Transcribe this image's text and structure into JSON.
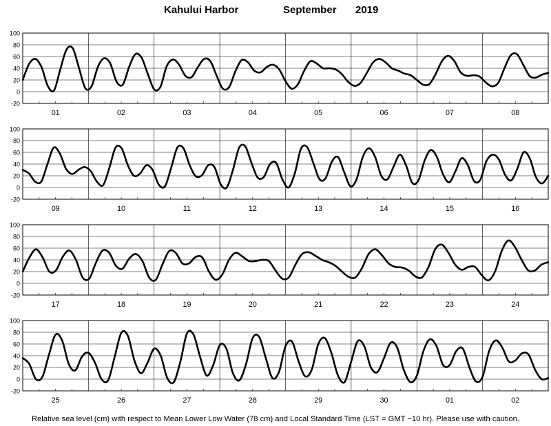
{
  "header": {
    "location": "Kahului Harbor",
    "month": "September",
    "year": "2019"
  },
  "caption": "Relative sea level (cm) with respect to Mean Lower Low Water (78 cm) and Local Standard Time (LST = GMT −10 hr). Please use with caution.",
  "chart_data": [
    {
      "type": "line",
      "x_labels": [
        "01",
        "02",
        "03",
        "04",
        "05",
        "06",
        "07",
        "08"
      ],
      "ylim": [
        -20,
        100
      ],
      "yticks": [
        -20,
        0,
        20,
        40,
        60,
        80,
        100
      ],
      "grid": true,
      "series": [
        {
          "values": [
            20,
            47,
            56,
            42,
            10,
            2,
            38,
            72,
            74,
            40,
            6,
            9,
            42,
            57,
            48,
            17,
            12,
            42,
            64,
            58,
            30,
            4,
            8,
            43,
            55,
            46,
            27,
            25,
            42,
            56,
            52,
            27,
            5,
            8,
            35,
            54,
            50,
            36,
            33,
            42,
            46,
            38,
            18,
            5,
            13,
            36,
            52,
            48,
            40,
            40,
            38,
            30,
            17,
            10,
            15,
            32,
            50,
            56,
            50,
            40,
            36,
            31,
            28,
            20,
            12,
            13,
            30,
            52,
            61,
            52,
            33,
            27,
            28,
            26,
            16,
            9,
            15,
            40,
            62,
            64,
            46,
            27,
            24,
            29,
            32
          ]
        }
      ]
    },
    {
      "type": "line",
      "x_labels": [
        "09",
        "10",
        "11",
        "12",
        "13",
        "14",
        "15",
        "16"
      ],
      "ylim": [
        -20,
        100
      ],
      "yticks": [
        -20,
        0,
        20,
        40,
        60,
        80,
        100
      ],
      "grid": true,
      "series": [
        {
          "values": [
            30,
            24,
            10,
            10,
            40,
            68,
            58,
            32,
            23,
            30,
            35,
            28,
            10,
            4,
            33,
            68,
            67,
            38,
            20,
            24,
            38,
            30,
            5,
            2,
            33,
            68,
            67,
            38,
            19,
            21,
            38,
            35,
            6,
            0,
            30,
            68,
            70,
            42,
            17,
            18,
            40,
            42,
            14,
            0,
            24,
            66,
            69,
            42,
            14,
            16,
            44,
            52,
            26,
            2,
            14,
            52,
            67,
            52,
            20,
            14,
            36,
            56,
            38,
            8,
            12,
            46,
            64,
            52,
            22,
            9,
            28,
            50,
            38,
            11,
            13,
            45,
            56,
            48,
            22,
            12,
            32,
            60,
            50,
            18,
            7,
            20
          ]
        }
      ]
    },
    {
      "type": "line",
      "x_labels": [
        "17",
        "18",
        "19",
        "20",
        "21",
        "22",
        "23",
        "24"
      ],
      "ylim": [
        -20,
        100
      ],
      "yticks": [
        -20,
        0,
        20,
        40,
        60,
        80,
        100
      ],
      "grid": true,
      "series": [
        {
          "values": [
            20,
            44,
            58,
            44,
            20,
            22,
            45,
            56,
            40,
            10,
            8,
            35,
            56,
            52,
            30,
            25,
            42,
            50,
            38,
            10,
            6,
            32,
            55,
            52,
            34,
            34,
            45,
            44,
            20,
            6,
            15,
            40,
            52,
            46,
            38,
            38,
            40,
            38,
            22,
            8,
            10,
            32,
            50,
            53,
            47,
            40,
            36,
            30,
            20,
            11,
            10,
            26,
            50,
            58,
            48,
            34,
            28,
            27,
            22,
            12,
            10,
            28,
            58,
            66,
            52,
            32,
            23,
            28,
            28,
            14,
            5,
            20,
            55,
            73,
            62,
            40,
            22,
            22,
            32,
            36
          ]
        }
      ]
    },
    {
      "type": "line",
      "x_labels": [
        "25",
        "26",
        "27",
        "28",
        "29",
        "30",
        "01",
        "02"
      ],
      "ylim": [
        -20,
        100
      ],
      "yticks": [
        -20,
        0,
        20,
        40,
        60,
        80,
        100
      ],
      "grid": true,
      "series": [
        {
          "values": [
            36,
            26,
            0,
            4,
            42,
            76,
            66,
            26,
            15,
            38,
            45,
            28,
            0,
            -2,
            38,
            79,
            74,
            32,
            10,
            28,
            52,
            40,
            2,
            -5,
            30,
            78,
            76,
            38,
            6,
            24,
            58,
            52,
            10,
            -2,
            26,
            70,
            72,
            36,
            2,
            12,
            56,
            64,
            30,
            5,
            16,
            60,
            70,
            44,
            6,
            -5,
            30,
            65,
            56,
            20,
            12,
            36,
            62,
            54,
            16,
            -5,
            6,
            48,
            68,
            56,
            24,
            24,
            48,
            52,
            20,
            -4,
            4,
            48,
            66,
            54,
            30,
            32,
            44,
            42,
            16,
            0,
            2
          ]
        }
      ]
    }
  ]
}
